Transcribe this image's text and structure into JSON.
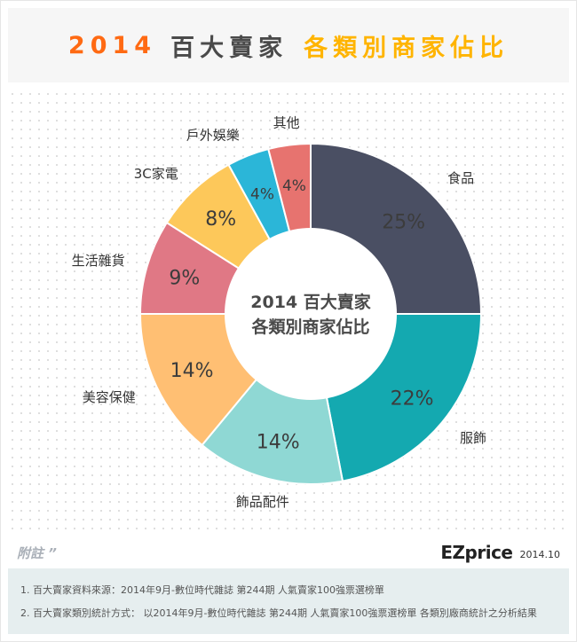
{
  "header": {
    "year": "2014",
    "part1": "百大賣家",
    "part2": "各類別商家佔比"
  },
  "chart_data": {
    "type": "pie",
    "donut": true,
    "center_label": [
      "2014 百大賣家",
      "各類別商家佔比"
    ],
    "categories": [
      "食品",
      "服飾",
      "飾品配件",
      "美容保健",
      "生活雜貨",
      "3C家電",
      "戶外娛樂",
      "其他"
    ],
    "values": [
      25,
      22,
      14,
      14,
      9,
      8,
      4,
      4
    ],
    "labels": [
      "25%",
      "22%",
      "14%",
      "14%",
      "9%",
      "8%",
      "4%",
      "4%"
    ],
    "colors": [
      "#4a4f63",
      "#14a9b0",
      "#8fd8d4",
      "#ffbf73",
      "#e07885",
      "#fdc85a",
      "#2bb6d8",
      "#e7736f"
    ]
  },
  "watermark": "EZprice",
  "footer": {
    "note_label": "附註",
    "quote": "”",
    "logo": "EZprice",
    "date": "2014.10",
    "notes": [
      "1. 百大賣家資料來源：2014年9月-數位時代雜誌 第244期 人氣賣家100強票選榜單",
      "2. 百大賣家類別統計方式： 以2014年9月-數位時代雜誌 第244期 人氣賣家100強票選榜單 各類別廠商統計之分析結果"
    ]
  }
}
